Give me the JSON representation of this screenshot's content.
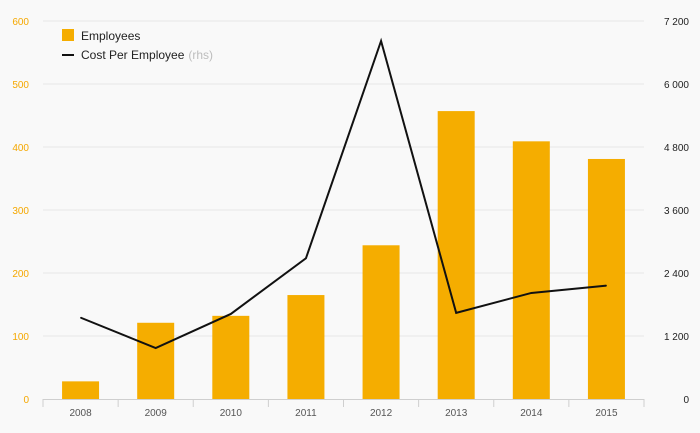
{
  "chart_data": {
    "type": "bar",
    "categories": [
      "2008",
      "2009",
      "2010",
      "2011",
      "2012",
      "2013",
      "2014",
      "2015"
    ],
    "series": [
      {
        "name": "Employees",
        "type": "bar",
        "axis": "left",
        "color": "#f5ad00",
        "values": [
          28,
          121,
          132,
          165,
          244,
          457,
          409,
          381
        ]
      },
      {
        "name": "Cost Per Employee",
        "name_suffix": "(rhs)",
        "type": "line",
        "axis": "right",
        "color": "#111111",
        "values": [
          1550,
          970,
          1620,
          2680,
          6820,
          1640,
          2020,
          2160
        ]
      }
    ],
    "yleft": {
      "ylim": [
        0,
        600
      ],
      "ticks": [
        "0",
        "100",
        "200",
        "300",
        "400",
        "500",
        "600"
      ],
      "tick_color": "#f5a800"
    },
    "yright": {
      "ylim": [
        0,
        7200
      ],
      "ticks": [
        "0",
        "1 200",
        "2 400",
        "3 600",
        "4 800",
        "6 000",
        "7 200"
      ],
      "tick_color": "#222222"
    },
    "grid": true,
    "legend_position": "top-left",
    "title": "",
    "xlabel": "",
    "ylabel": ""
  }
}
